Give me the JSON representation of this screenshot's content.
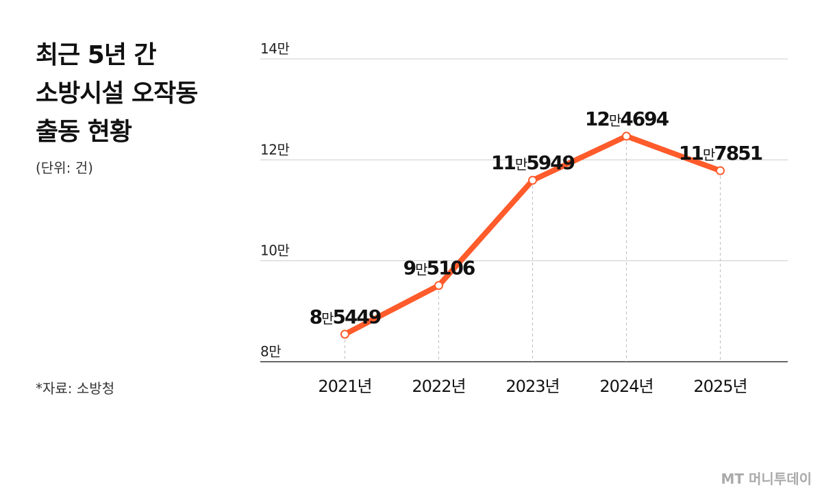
{
  "title_lines": [
    "최근 5년 간",
    "소방시설 오작동",
    "출동 현황"
  ],
  "unit": "(단위: 건)",
  "source": "*자료: 소방청",
  "logo": "MT 머니투데이",
  "chart_data": {
    "type": "line",
    "categories": [
      "2021년",
      "2022년",
      "2023년",
      "2024년",
      "2025년"
    ],
    "series": [
      {
        "name": "출동",
        "color": "#ff5b2b",
        "values": [
          85449,
          95106,
          115949,
          124694,
          117851
        ],
        "value_labels": [
          "8만5449",
          "9만5106",
          "11만5949",
          "12만4694",
          "11만7851"
        ]
      }
    ],
    "ylim": [
      80000,
      140000
    ],
    "yticks": [
      {
        "value": 80000,
        "label": "8만"
      },
      {
        "value": 100000,
        "label": "10만"
      },
      {
        "value": 120000,
        "label": "12만"
      },
      {
        "value": 140000,
        "label": "14만"
      }
    ],
    "grid": true
  }
}
